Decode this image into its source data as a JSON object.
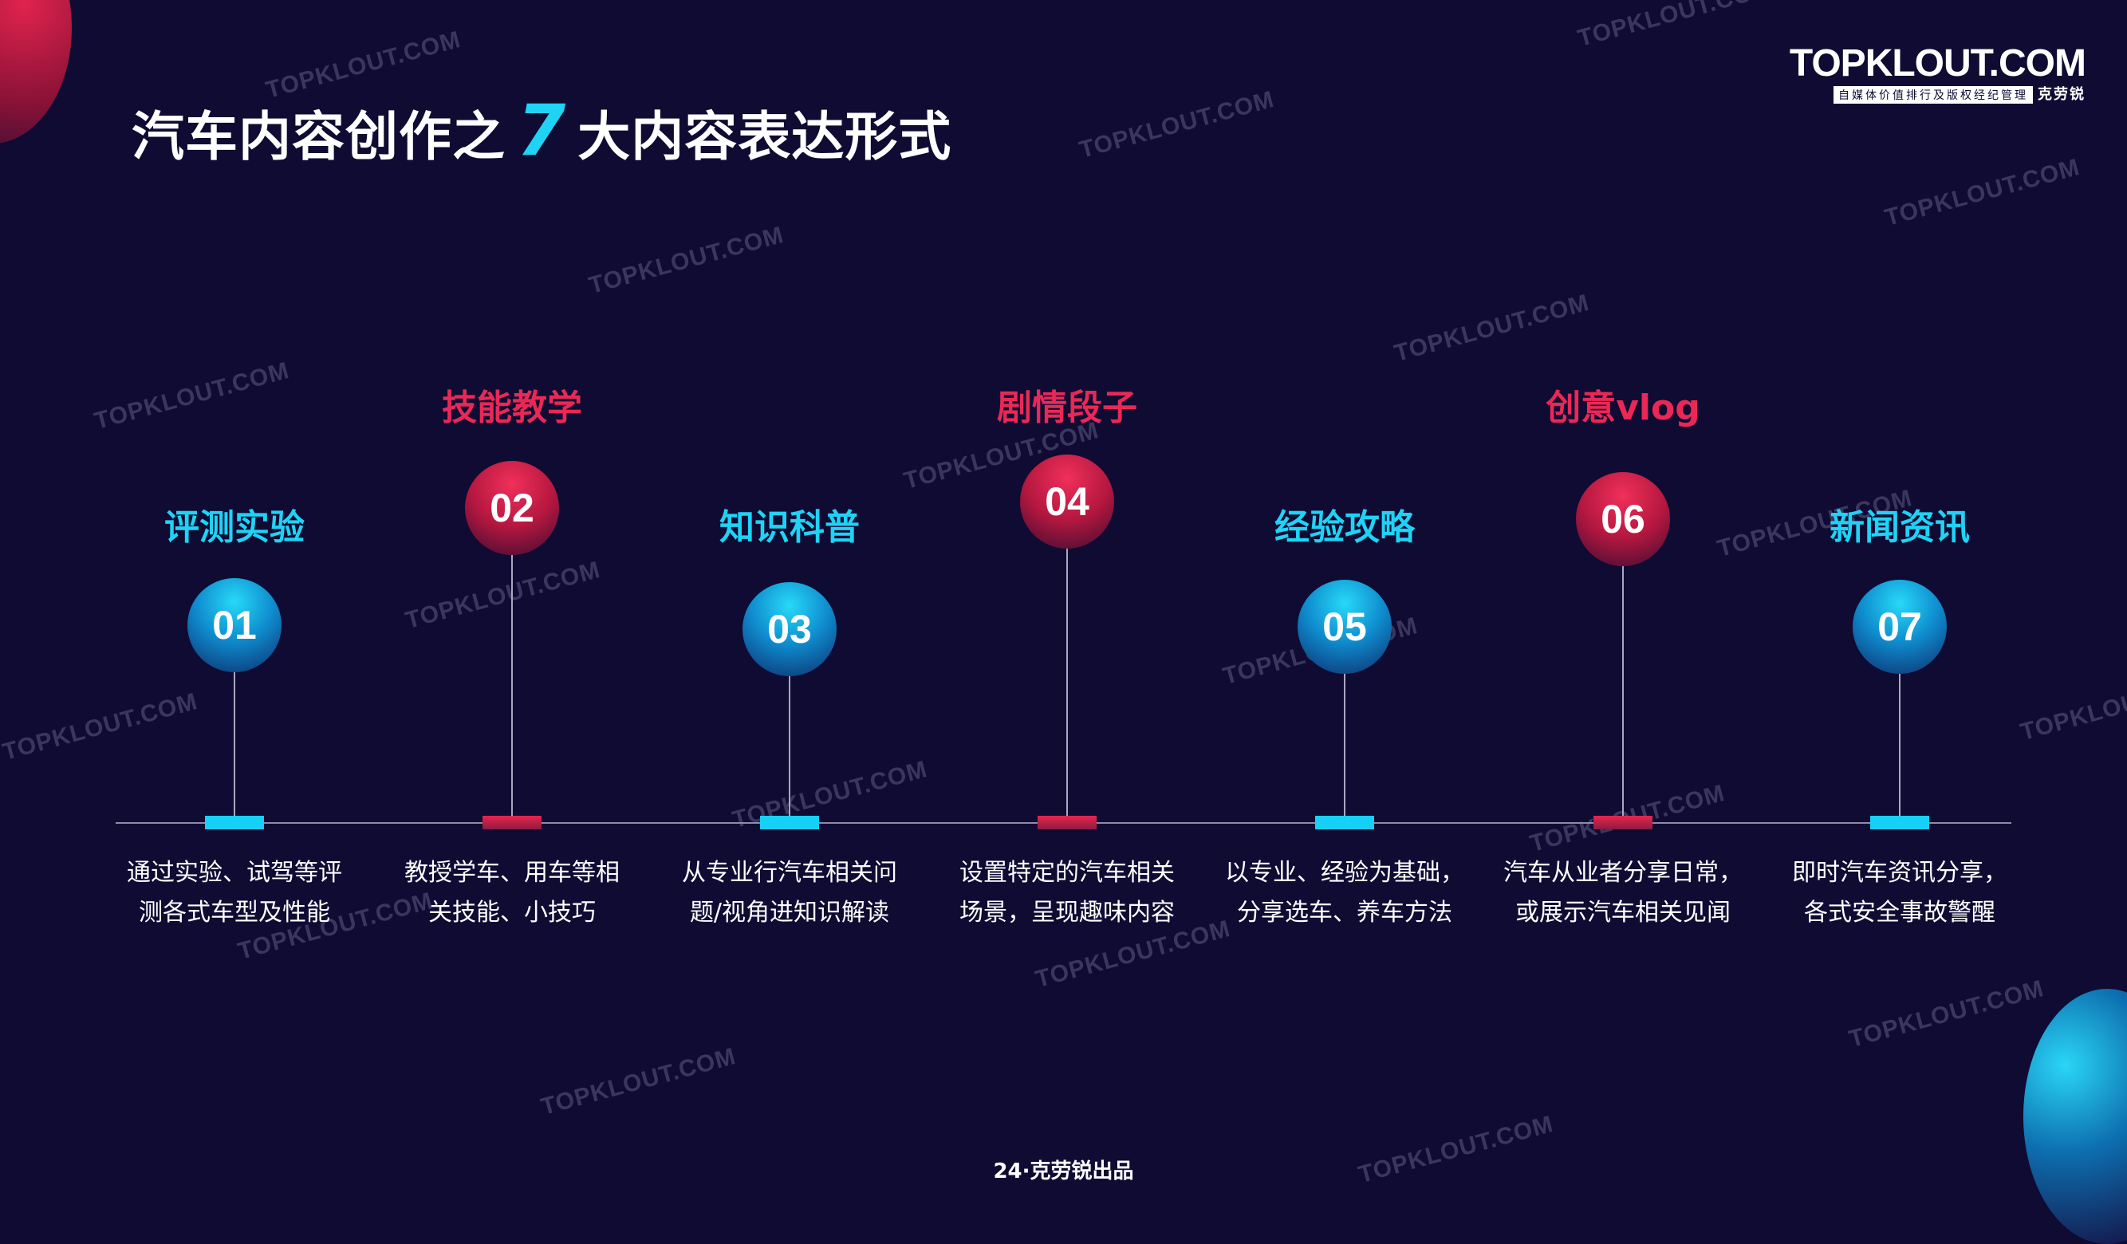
{
  "title": {
    "prefix": "汽车内容创作之",
    "number": "7",
    "suffix": "大内容表达形式"
  },
  "brand": {
    "name": "TOPKLOUT.COM",
    "tagline": "自媒体价值排行及版权经纪管理",
    "cn_name": "克劳锐"
  },
  "watermark_text": "TOPKLOUT.COM",
  "items": [
    {
      "num": "01",
      "label": "评测实验",
      "color": "blue",
      "desc": [
        "通过实验、试驾等评",
        "测各式车型及性能"
      ]
    },
    {
      "num": "02",
      "label": "技能教学",
      "color": "red",
      "desc": [
        "教授学车、用车等相",
        "关技能、小技巧"
      ]
    },
    {
      "num": "03",
      "label": "知识科普",
      "color": "blue",
      "desc": [
        "从专业行汽车相关问",
        "题/视角进知识解读"
      ]
    },
    {
      "num": "04",
      "label": "剧情段子",
      "color": "red",
      "desc": [
        "设置特定的汽车相关",
        "场景，呈现趣味内容"
      ]
    },
    {
      "num": "05",
      "label": "经验攻略",
      "color": "blue",
      "desc": [
        "以专业、经验为基础，",
        "分享选车、养车方法"
      ]
    },
    {
      "num": "06",
      "label": "创意vlog",
      "color": "red",
      "desc": [
        "汽车从业者分享日常，",
        "或展示汽车相关见闻"
      ]
    },
    {
      "num": "07",
      "label": "新闻资讯",
      "color": "blue",
      "desc": [
        "即时汽车资讯分享，",
        "各式安全事故警醒"
      ]
    }
  ],
  "colors": {
    "background": "#0f0b33",
    "accent_blue": "#1fd3f5",
    "accent_red": "#ea2856"
  },
  "footer": "24·克劳锐出品"
}
